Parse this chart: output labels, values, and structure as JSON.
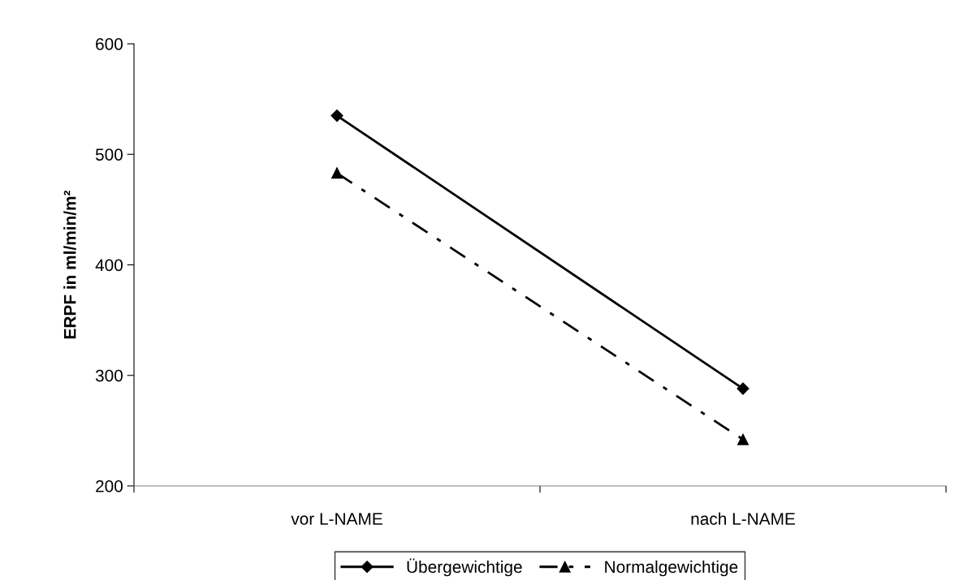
{
  "chart_data": {
    "type": "line",
    "ylabel": "ERPF in ml/min/m²",
    "categories": [
      "vor L-NAME",
      "nach L-NAME"
    ],
    "series": [
      {
        "name": "Übergewichtige",
        "color": "#000000",
        "values": [
          535,
          288
        ],
        "marker": "diamond",
        "line_style": "solid"
      },
      {
        "name": "Normalgewichtige",
        "color": "#000000",
        "values": [
          483,
          242
        ],
        "marker": "triangle",
        "line_style": "dashed"
      }
    ],
    "ylim": [
      200,
      600
    ],
    "yticks": [
      200,
      300,
      400,
      500,
      600
    ],
    "grid": false,
    "legend": "bottom"
  }
}
